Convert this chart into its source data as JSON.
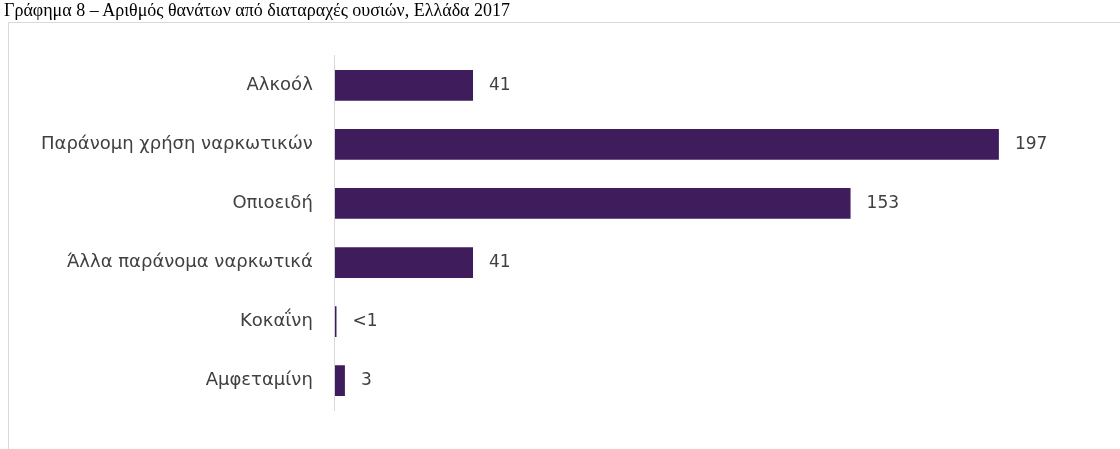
{
  "chart_data": {
    "type": "bar",
    "orientation": "horizontal",
    "title": "Γράφημα 8 – Αριθμός θανάτων από διαταραχές ουσιών, Ελλάδα 2017",
    "categories": [
      "Αλκοόλ",
      "Παράνομη χρήση ναρκωτικών",
      "Οπιοειδή",
      "Άλλα παράνομα ναρκωτικά",
      "Κοκαΐνη",
      "Αμφεταμίνη"
    ],
    "values": [
      41,
      197,
      153,
      41,
      0.5,
      3
    ],
    "value_labels": [
      "41",
      "197",
      "153",
      "41",
      "<1",
      "3"
    ],
    "color": "#3f1d5c",
    "tick_labels": "y",
    "grid": false,
    "legend": false
  }
}
